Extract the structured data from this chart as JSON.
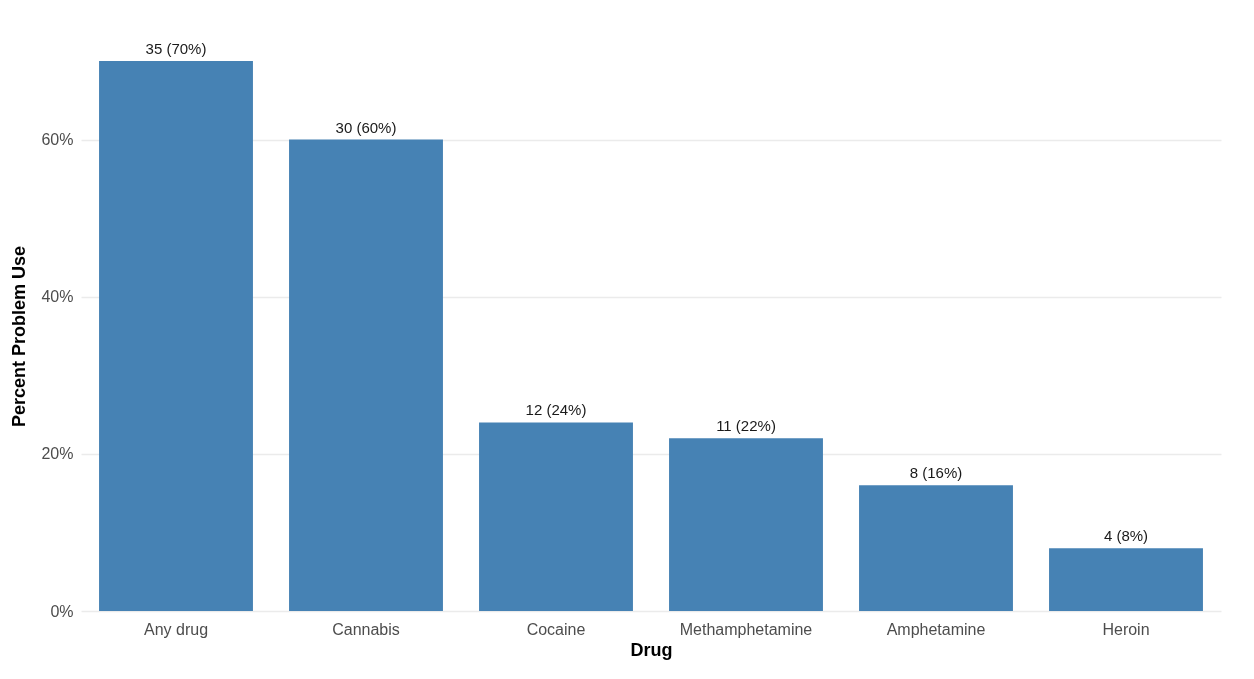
{
  "chart_data": {
    "type": "bar",
    "xlabel": "Drug",
    "ylabel": "Percent Problem Use",
    "categories": [
      "Any drug",
      "Cannabis",
      "Cocaine",
      "Methamphetamine",
      "Amphetamine",
      "Heroin"
    ],
    "values": [
      70,
      60,
      24,
      22,
      16,
      8
    ],
    "value_labels": [
      "35 (70%)",
      "30 (60%)",
      "12 (24%)",
      "11 (22%)",
      "8 (16%)",
      "4 (8%)"
    ],
    "color": "#4682b4",
    "ylim": [
      0,
      70
    ],
    "yticks": [
      {
        "value": 0,
        "label": "0%"
      },
      {
        "value": 20,
        "label": "20%"
      },
      {
        "value": 40,
        "label": "40%"
      },
      {
        "value": 60,
        "label": "60%"
      }
    ],
    "grid": "y"
  }
}
